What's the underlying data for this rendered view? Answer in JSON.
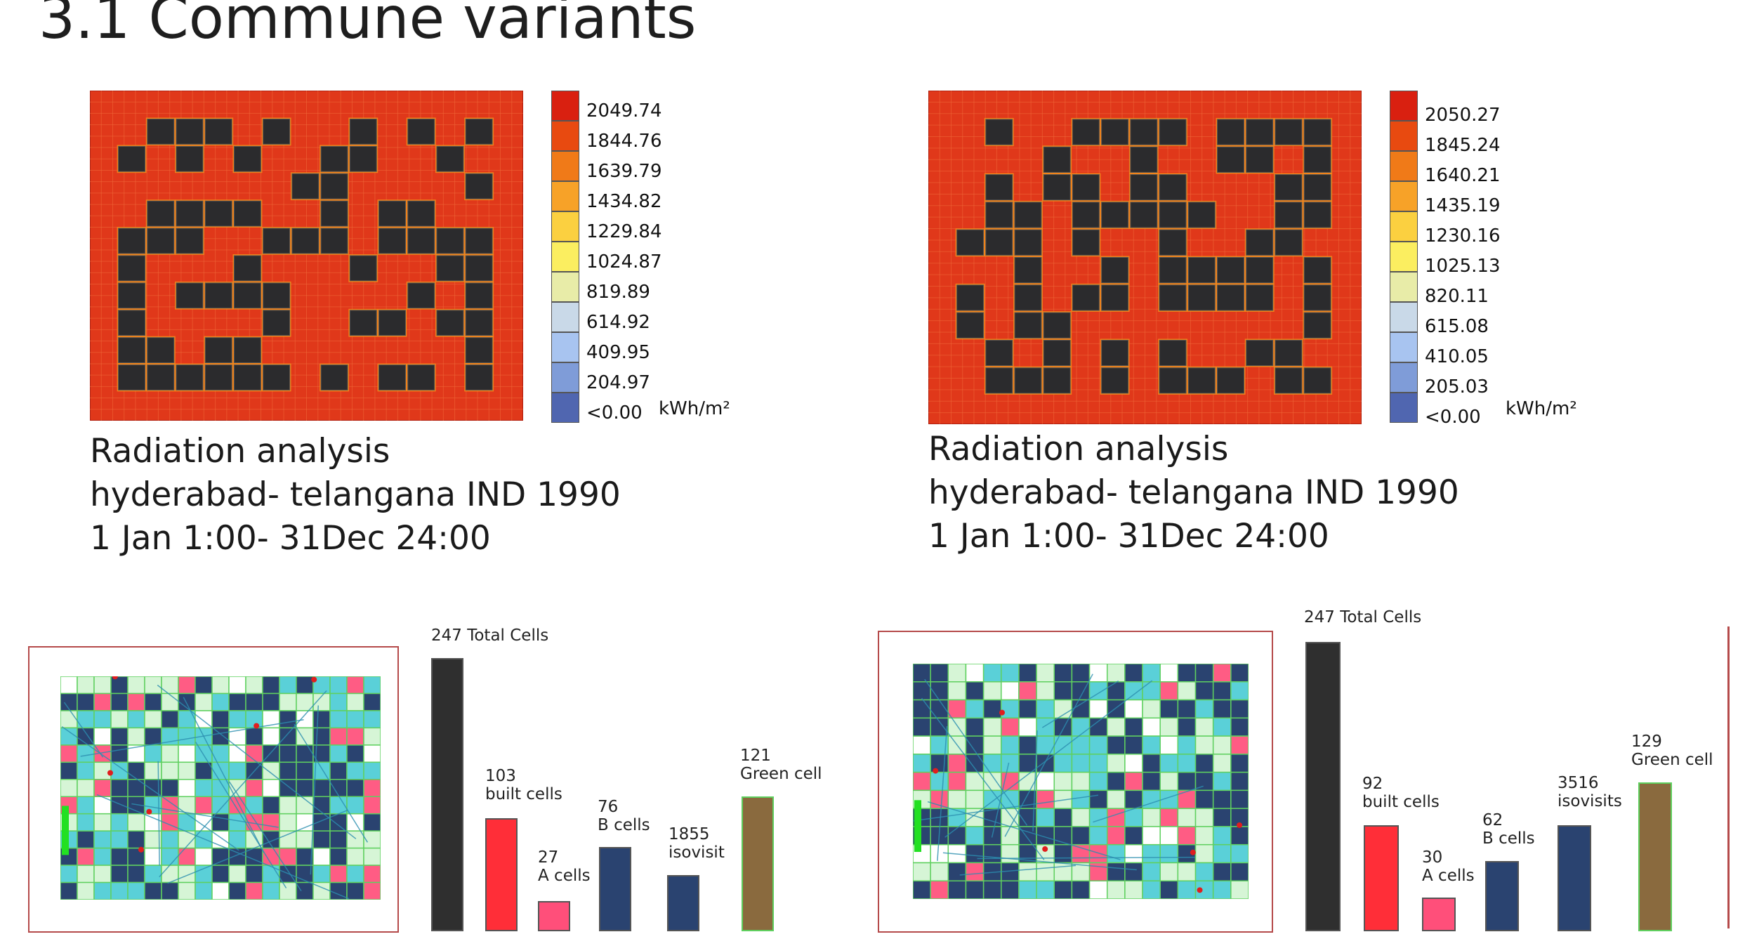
{
  "title": "3.1 Commune variants",
  "variants": [
    {
      "radiation": {
        "legend": [
          "2049.74",
          "1844.76",
          "1639.79",
          "1434.82",
          "1229.84",
          "1024.87",
          "819.89",
          "614.92",
          "409.95",
          "204.97",
          "<0.00"
        ],
        "unit": "kWh/m²",
        "caption": [
          "Radiation analysis",
          "hyderabad- telangana IND 1990",
          "1 Jan 1:00- 31Dec 24:00"
        ]
      },
      "stats": {
        "total": {
          "value": "247",
          "label": "Total Cells"
        },
        "built": {
          "value": "103",
          "label": "built cells"
        },
        "a": {
          "value": "27",
          "label": "A cells"
        },
        "b": {
          "value": "76",
          "label": "B cells"
        },
        "iso": {
          "value": "1855",
          "label": "isovisit"
        },
        "green": {
          "value": "121",
          "label": "Green cell"
        }
      }
    },
    {
      "radiation": {
        "legend": [
          "2050.27",
          "1845.24",
          "1640.21",
          "1435.19",
          "1230.16",
          "1025.13",
          "820.11",
          "615.08",
          "410.05",
          "205.03",
          "<0.00"
        ],
        "unit": "kWh/m²",
        "caption": [
          "Radiation analysis",
          "hyderabad- telangana IND 1990",
          "1 Jan 1:00- 31Dec 24:00"
        ]
      },
      "stats": {
        "total": {
          "value": "247",
          "label": "Total Cells"
        },
        "built": {
          "value": "92",
          "label": "built cells"
        },
        "a": {
          "value": "30",
          "label": "A cells"
        },
        "b": {
          "value": "62",
          "label": "B cells"
        },
        "iso": {
          "value": "3516",
          "label": "isovisits"
        },
        "green": {
          "value": "129",
          "label": "Green cell"
        }
      }
    }
  ],
  "legend_colors": [
    "#d92010",
    "#e84a10",
    "#f07a18",
    "#f7a228",
    "#fbd040",
    "#fbee60",
    "#e8eca8",
    "#c9d9e8",
    "#a8c4f0",
    "#7f9cd8",
    "#5066b0"
  ],
  "colors": {
    "heat_bg": "#e0381a",
    "heat_edge": "#f28a1c",
    "building": "#2b2b2d",
    "total_bar": "#2f2f2f",
    "built_bar": "#ff2e38",
    "a_bar": "#ff4f7a",
    "b_bar": "#2a4370",
    "green_bar": "#8a6a3e",
    "cell_green": "#d6f5d6",
    "cell_blue": "#2a4370",
    "cell_pink": "#ff5c84",
    "cell_cyan": "#5ad0d8"
  }
}
